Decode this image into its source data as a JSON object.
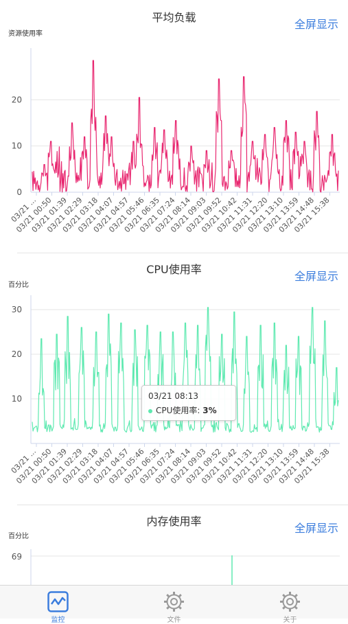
{
  "charts": [
    {
      "title": "平均负载",
      "fullscreen_label": "全屏显示",
      "ylabel": "资源使用率",
      "color": "#e8266f",
      "chart_data": {
        "type": "line",
        "ylabel": "资源使用率",
        "ylim": [
          0,
          30
        ],
        "yticks": [
          0,
          10,
          20
        ],
        "xticks": [
          "03/21 ...",
          "03/21 00:50",
          "03/21 01:39",
          "03/21 02:29",
          "03/21 03:18",
          "03/21 04:07",
          "03/21 04:57",
          "03/21 05:46",
          "03/21 06:35",
          "03/21 07:24",
          "03/21 08:14",
          "03/21 09:03",
          "03/21 09:52",
          "03/21 10:42",
          "03/21 11:31",
          "03/21 12:20",
          "03/21 13:10",
          "03/21 13:59",
          "03/21 14:48",
          "03/21 15:38"
        ],
        "peaks": [
          [
            0.04,
            6
          ],
          [
            0.06,
            11
          ],
          [
            0.13,
            15
          ],
          [
            0.17,
            12
          ],
          [
            0.2,
            28.5
          ],
          [
            0.24,
            16.5
          ],
          [
            0.26,
            12
          ],
          [
            0.33,
            11
          ],
          [
            0.35,
            20.5
          ],
          [
            0.4,
            14
          ],
          [
            0.43,
            13.5
          ],
          [
            0.47,
            15.5
          ],
          [
            0.52,
            10
          ],
          [
            0.57,
            9
          ],
          [
            0.61,
            24.5
          ],
          [
            0.65,
            9
          ],
          [
            0.69,
            25
          ],
          [
            0.72,
            11
          ],
          [
            0.76,
            12.5
          ],
          [
            0.79,
            14
          ],
          [
            0.83,
            15.5
          ],
          [
            0.86,
            13
          ],
          [
            0.89,
            11
          ],
          [
            0.93,
            17.5
          ],
          [
            0.98,
            12.5
          ]
        ],
        "baseline": [
          0,
          5
        ]
      }
    },
    {
      "title": "CPU使用率",
      "fullscreen_label": "全屏显示",
      "ylabel": "百分比",
      "color": "#5ee9b0",
      "chart_data": {
        "type": "line",
        "ylabel": "百分比",
        "ylim": [
          0,
          32
        ],
        "yticks": [
          10,
          20,
          30
        ],
        "xticks": [
          "03/21 ...",
          "03/21 00:50",
          "03/21 01:39",
          "03/21 02:29",
          "03/21 03:18",
          "03/21 04:07",
          "03/21 04:57",
          "03/21 05:46",
          "03/21 06:35",
          "03/21 07:24",
          "03/21 08:14",
          "03/21 09:03",
          "03/21 09:52",
          "03/21 10:42",
          "03/21 11:31",
          "03/21 12:20",
          "03/21 13:10",
          "03/21 13:59",
          "03/21 14:48",
          "03/21 15:38"
        ],
        "peaks": [
          [
            0.03,
            23.5
          ],
          [
            0.08,
            24.5
          ],
          [
            0.115,
            28.5
          ],
          [
            0.16,
            26
          ],
          [
            0.21,
            25
          ],
          [
            0.25,
            29
          ],
          [
            0.29,
            27
          ],
          [
            0.335,
            25.5
          ],
          [
            0.375,
            26.5
          ],
          [
            0.42,
            25
          ],
          [
            0.46,
            25
          ],
          [
            0.5,
            27
          ],
          [
            0.54,
            26.5
          ],
          [
            0.575,
            30.5
          ],
          [
            0.62,
            24.5
          ],
          [
            0.66,
            29.5
          ],
          [
            0.7,
            24
          ],
          [
            0.745,
            26.5
          ],
          [
            0.79,
            27
          ],
          [
            0.83,
            22
          ],
          [
            0.87,
            24
          ],
          [
            0.915,
            30.5
          ],
          [
            0.955,
            27.5
          ],
          [
            0.995,
            17
          ]
        ],
        "baseline": [
          2.5,
          4.5
        ]
      },
      "tooltip": {
        "time": "03/21 08:13",
        "series": "CPU使用率:",
        "value": "3%"
      }
    },
    {
      "title": "内存使用率",
      "fullscreen_label": "全屏显示",
      "ylabel": "百分比",
      "color": "#5ee9b0",
      "chart_data": {
        "type": "line",
        "ylabel": "百分比",
        "yticks": [
          69
        ]
      }
    }
  ],
  "tabbar": {
    "tabs": [
      {
        "label": "监控",
        "icon": "monitor-chart-icon",
        "active": true,
        "color": "#3b7ddd"
      },
      {
        "label": "文件",
        "icon": "gear-icon",
        "active": false,
        "color": "#999999"
      },
      {
        "label": "关于",
        "icon": "gear-icon",
        "active": false,
        "color": "#999999"
      }
    ]
  }
}
